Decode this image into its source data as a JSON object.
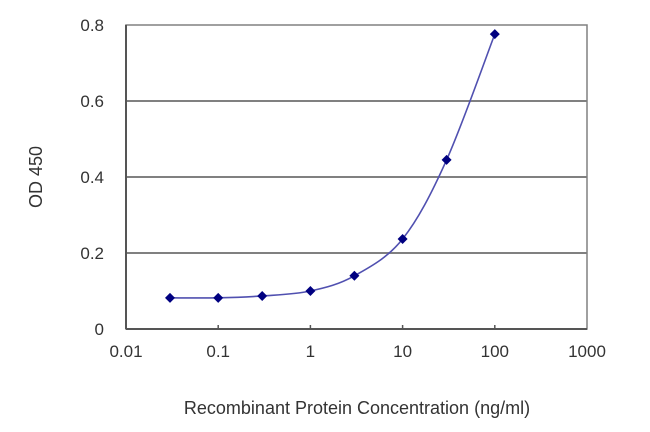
{
  "chart_data": {
    "type": "line",
    "title": "",
    "xlabel": "Recombinant Protein Concentration (ng/ml)",
    "ylabel": "OD 450",
    "xscale": "log",
    "xlim": [
      0.01,
      1000
    ],
    "ylim": [
      0,
      0.8
    ],
    "x_ticks": [
      "0.01",
      "0.1",
      "1",
      "10",
      "100",
      "1000"
    ],
    "y_ticks": [
      "0",
      "0.2",
      "0.4",
      "0.6",
      "0.8"
    ],
    "grid": "horizontal",
    "legend": null,
    "series": [
      {
        "name": "OD 450",
        "color": "#000080",
        "line_color": "#5050b0",
        "marker": "diamond",
        "x": [
          0.03,
          0.1,
          0.3,
          1,
          3,
          10,
          30,
          100
        ],
        "values": [
          0.082,
          0.082,
          0.087,
          0.1,
          0.14,
          0.237,
          0.445,
          0.776
        ]
      }
    ]
  }
}
